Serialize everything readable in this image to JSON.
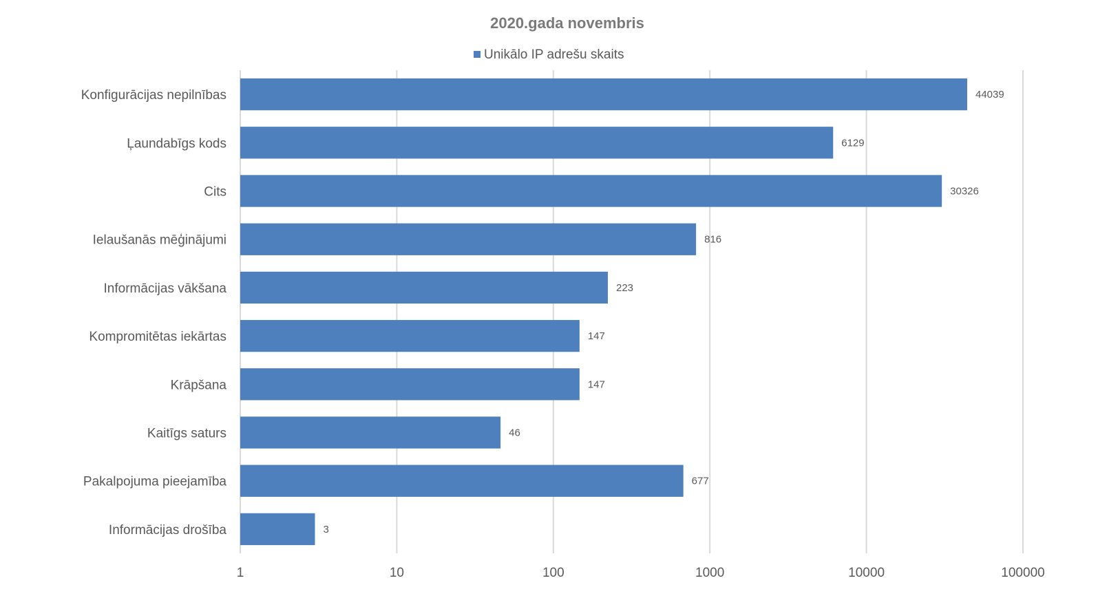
{
  "chart_data": {
    "type": "bar",
    "orientation": "horizontal",
    "title": "2020.gada  novembris",
    "xscale": "log",
    "xlim": [
      1,
      100000
    ],
    "xticks": [
      1,
      10,
      100,
      1000,
      10000,
      100000
    ],
    "xtick_labels": [
      "1",
      "10",
      "100",
      "1000",
      "10000",
      "100000"
    ],
    "grid": true,
    "legend_position": "top",
    "categories": [
      "Konfigurācijas nepilnības",
      "Ļaundabīgs kods",
      "Cits",
      "Ielaušanās mēģinājumi",
      "Informācijas vākšana",
      "Kompromitētas iekārtas",
      "Krāpšana",
      "Kaitīgs saturs",
      "Pakalpojuma pieejamība",
      "Informācijas drošība"
    ],
    "series": [
      {
        "name": "Unikālo IP adrešu skaits",
        "color": "#4e80bd",
        "values": [
          44039,
          6129,
          30326,
          816,
          223,
          147,
          147,
          46,
          677,
          3
        ],
        "labels": [
          "44039",
          "6129",
          "30326",
          "816",
          "223",
          "147",
          "147",
          "46",
          "677",
          "3"
        ]
      }
    ]
  }
}
